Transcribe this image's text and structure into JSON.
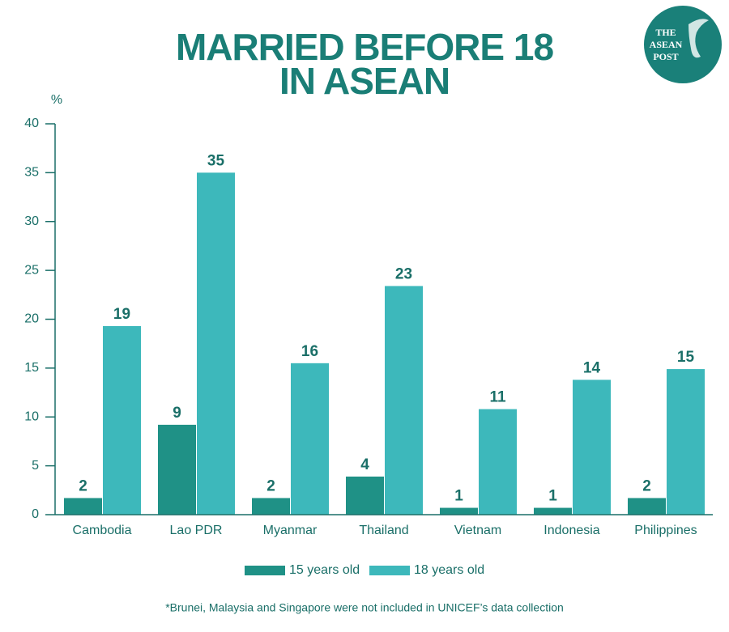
{
  "chart_data": {
    "type": "bar",
    "title": [
      "MARRIED BEFORE 18",
      "IN ASEAN"
    ],
    "y_label": "%",
    "categories": [
      "Cambodia",
      "Lao PDR",
      "Myanmar",
      "Thailand",
      "Vietnam",
      "Indonesia",
      "Philippines"
    ],
    "series": [
      {
        "name": "15 years old",
        "color": "#1f9186",
        "values": [
          1.7,
          9.2,
          1.7,
          3.9,
          0.7,
          0.7,
          1.7
        ],
        "value_labels": [
          "2",
          "9",
          "2",
          "4",
          "1",
          "1",
          "2"
        ]
      },
      {
        "name": "18 years old",
        "color": "#3db8bb",
        "values": [
          19.3,
          35.0,
          15.5,
          23.4,
          10.8,
          13.8,
          14.9
        ],
        "value_labels": [
          "19",
          "35",
          "16",
          "23",
          "11",
          "14",
          "15"
        ]
      }
    ],
    "ylim": [
      0,
      40
    ],
    "yticks": [
      0,
      5,
      10,
      15,
      20,
      25,
      30,
      35,
      40
    ],
    "footnote": "*Brunei, Malaysia and Singapore were not included in UNICEF’s data collection"
  },
  "logo": [
    "THE",
    "ASEAN",
    "POST"
  ]
}
